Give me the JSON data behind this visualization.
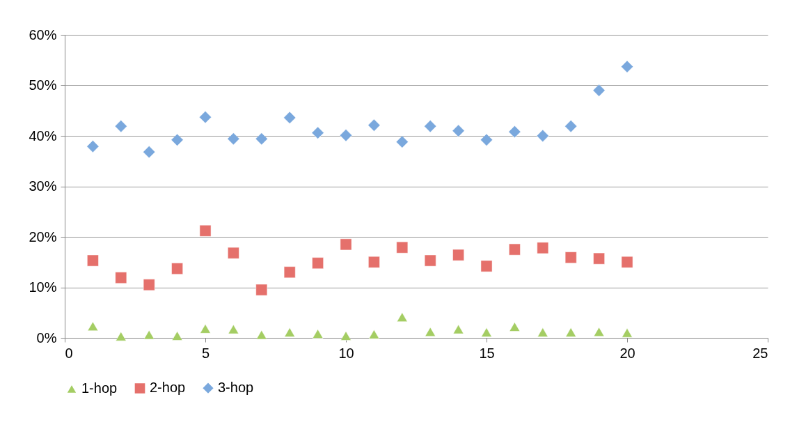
{
  "chart_data": {
    "type": "scatter",
    "x": [
      1,
      2,
      3,
      4,
      5,
      6,
      7,
      8,
      9,
      10,
      11,
      12,
      13,
      14,
      15,
      16,
      17,
      18,
      19,
      20
    ],
    "series": [
      {
        "name": "1-hop",
        "color": "#a4cd63",
        "marker": "triangle",
        "values": [
          2.3,
          0.3,
          0.6,
          0.4,
          1.8,
          1.7,
          0.6,
          1.1,
          0.8,
          0.4,
          0.7,
          4.1,
          1.2,
          1.7,
          1.1,
          2.2,
          1.1,
          1.1,
          1.2,
          1.0
        ]
      },
      {
        "name": "2-hop",
        "color": "#e5706b",
        "marker": "square",
        "values": [
          15.3,
          11.9,
          10.5,
          13.7,
          21.2,
          16.8,
          9.5,
          13.0,
          14.8,
          18.5,
          15.0,
          17.9,
          15.3,
          16.4,
          14.2,
          17.5,
          17.8,
          15.9,
          15.7,
          15.0
        ]
      },
      {
        "name": "3-hop",
        "color": "#7aa8dd",
        "marker": "diamond",
        "values": [
          37.9,
          41.9,
          36.8,
          39.2,
          43.7,
          39.4,
          39.4,
          43.6,
          40.6,
          40.1,
          42.1,
          38.8,
          41.9,
          41.0,
          39.2,
          40.8,
          40.0,
          41.9,
          49.0,
          53.7
        ]
      }
    ],
    "xlim": [
      0,
      25
    ],
    "xticks": [
      0,
      5,
      10,
      15,
      20,
      25
    ],
    "ylim": [
      0,
      60
    ],
    "yticks": [
      {
        "value": 0,
        "label": "0%"
      },
      {
        "value": 10,
        "label": "10%"
      },
      {
        "value": 20,
        "label": "20%"
      },
      {
        "value": 30,
        "label": "30%"
      },
      {
        "value": 40,
        "label": "40%"
      },
      {
        "value": 50,
        "label": "50%"
      },
      {
        "value": 60,
        "label": "60%"
      }
    ],
    "grid": "y",
    "legend": "bottom"
  }
}
